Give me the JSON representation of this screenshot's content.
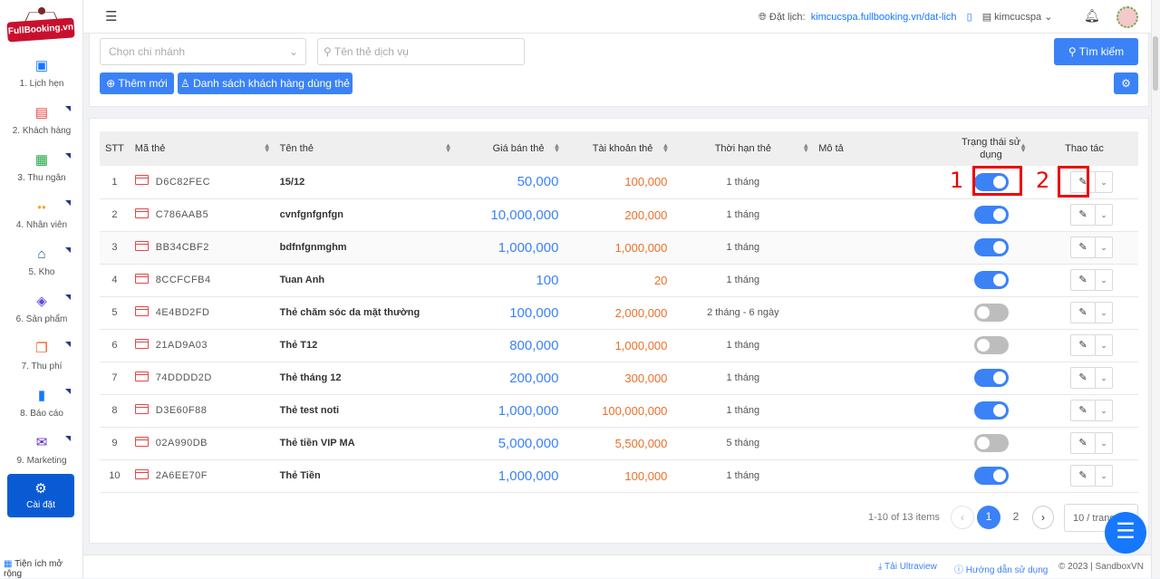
{
  "brand": {
    "logo_text": "FullBooking.vn"
  },
  "sidebar": {
    "items": [
      {
        "label": "1. Lịch hẹn",
        "icon": "calendar-icon"
      },
      {
        "label": "2. Khách hàng",
        "icon": "contact-card-icon"
      },
      {
        "label": "3. Thu ngân",
        "icon": "calculator-icon"
      },
      {
        "label": "4. Nhân viên",
        "icon": "users-icon"
      },
      {
        "label": "5. Kho",
        "icon": "home-icon"
      },
      {
        "label": "6. Sản phẩm",
        "icon": "box-icon"
      },
      {
        "label": "7. Thu phí",
        "icon": "copy-icon"
      },
      {
        "label": "8. Báo cáo",
        "icon": "bar-signal-icon"
      },
      {
        "label": "9. Marketing",
        "icon": "mail-icon"
      }
    ],
    "active": {
      "label": "Cài đặt",
      "icon": "gear-icon"
    },
    "extension": "Tiện ích mở rộng"
  },
  "header": {
    "booking_label": "Đặt lịch:",
    "booking_url": "kimcucspa.fullbooking.vn/dat-lich",
    "store": "kimcucspa"
  },
  "filters": {
    "branch_placeholder": "Chọn chi nhánh",
    "service_placeholder": "Tên thẻ dịch vụ",
    "search_label": "Tìm kiếm",
    "add_label": "Thêm mới",
    "customers_label": "Danh sách khách hàng dùng thẻ"
  },
  "table": {
    "columns": [
      "STT",
      "Mã thẻ",
      "Tên thẻ",
      "Giá bán thẻ",
      "Tài khoản thẻ",
      "Thời hạn thẻ",
      "Mô tả",
      "Trạng thái sử dụng",
      "Thao tác"
    ],
    "rows": [
      {
        "stt": "1",
        "code": "D6C82FEC",
        "name": "15/12",
        "price": "50,000",
        "account": "100,000",
        "duration": "1 tháng",
        "desc": "",
        "active": true
      },
      {
        "stt": "2",
        "code": "C786AAB5",
        "name": "cvnfgnfgnfgn",
        "price": "10,000,000",
        "account": "200,000",
        "duration": "1 tháng",
        "desc": "",
        "active": true
      },
      {
        "stt": "3",
        "code": "BB34CBF2",
        "name": "bdfnfgnmghm",
        "price": "1,000,000",
        "account": "1,000,000",
        "duration": "1 tháng",
        "desc": "",
        "active": true
      },
      {
        "stt": "4",
        "code": "8CCFCFB4",
        "name": "Tuan Anh",
        "price": "100",
        "account": "20",
        "duration": "1 tháng",
        "desc": "",
        "active": true
      },
      {
        "stt": "5",
        "code": "4E4BD2FD",
        "name": "Thẻ chăm sóc da mặt thường",
        "price": "100,000",
        "account": "2,000,000",
        "duration": "2 tháng - 6 ngày",
        "desc": "",
        "active": false
      },
      {
        "stt": "6",
        "code": "21AD9A03",
        "name": "Thẻ T12",
        "price": "800,000",
        "account": "1,000,000",
        "duration": "1 tháng",
        "desc": "",
        "active": false
      },
      {
        "stt": "7",
        "code": "74DDDD2D",
        "name": "Thẻ tháng 12",
        "price": "200,000",
        "account": "300,000",
        "duration": "1 tháng",
        "desc": "",
        "active": true
      },
      {
        "stt": "8",
        "code": "D3E60F88",
        "name": "Thẻ test noti",
        "price": "1,000,000",
        "account": "100,000,000",
        "duration": "1 tháng",
        "desc": "",
        "active": true
      },
      {
        "stt": "9",
        "code": "02A990DB",
        "name": "Thẻ tiền VIP MA",
        "price": "5,000,000",
        "account": "5,500,000",
        "duration": "5 tháng",
        "desc": "",
        "active": false
      },
      {
        "stt": "10",
        "code": "2A6EE70F",
        "name": "Thẻ Tiền",
        "price": "1,000,000",
        "account": "100,000",
        "duration": "1 tháng",
        "desc": "",
        "active": true
      }
    ]
  },
  "pagination": {
    "summary": "1-10 of 13 items",
    "pages": [
      "1",
      "2"
    ],
    "current": "1",
    "page_size": "10 / trang"
  },
  "annotations": {
    "label1": "1",
    "label2": "2"
  },
  "footer": {
    "ultraview": "Tải Ultraview",
    "guide": "Hướng dẫn sử dụng",
    "copyright": "© 2023 | SandboxVN"
  },
  "colors": {
    "primary": "#3b82f6",
    "active_nav": "#0a5bd3",
    "price": "#3b82f6",
    "account": "#e8702a",
    "annotation": "#ee0000"
  }
}
